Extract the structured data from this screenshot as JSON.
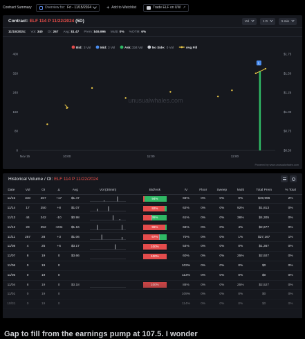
{
  "topbar": {
    "title": "Contract Summary",
    "overview_label": "Overview for:",
    "overview_date": "Fri - 11/15/2024",
    "add_watchlist": "Add to Watchlist",
    "trade": "Trade ELF on UW"
  },
  "contract": {
    "prefix": "Contract:",
    "symbol": "ELF 114 P 11/22/2024",
    "dte": "(5D)",
    "dropdowns": [
      "Vol",
      "1 D",
      "5 min"
    ],
    "stats": {
      "date": "11/15/2024:",
      "vol_label": "Vol:",
      "vol": "340",
      "oi_label": "OI:",
      "oi": "267",
      "avg_label": "Avg:",
      "avg": "$1.47",
      "prem_label": "Prem:",
      "prem": "$49,996",
      "multi_label": "Multi:",
      "multi": "0%",
      "otm_label": "%OTM:",
      "otm": "6%"
    },
    "watermark": "unusualwhales.com",
    "powered": "Powered by www.unusualwhales.com"
  },
  "chart_data": {
    "type": "scatter",
    "x_ticks": [
      "Nov 15",
      "10:00",
      "11:00",
      "12:00"
    ],
    "y_left_ticks": [
      0,
      80,
      160,
      240,
      320,
      400
    ],
    "y_right_ticks": [
      "$0.50",
      "$0.75",
      "$1.00",
      "$1.25",
      "$1.50",
      "$1.75"
    ],
    "ylim_left": [
      0,
      400
    ],
    "ylim_right": [
      0.5,
      1.75
    ],
    "legend": [
      {
        "label": "Bid:",
        "value": "3 Vol",
        "color": "#e44c4c"
      },
      {
        "label": "Mid:",
        "value": "3 Vol",
        "color": "#4a8df0"
      },
      {
        "label": "Ask:",
        "value": "334 Vol",
        "color": "#2fb864"
      },
      {
        "label": "No Side:",
        "value": "0 Vol",
        "color": "#cfd2d8"
      },
      {
        "label": "Avg Fill",
        "value": "",
        "color": "#e8c547"
      }
    ],
    "avg_fill_points": [
      {
        "t": "09:46",
        "price": 0.84
      },
      {
        "t": "10:00",
        "price": 1.05
      },
      {
        "t": "10:18",
        "price": 1.31
      },
      {
        "t": "10:42",
        "price": 1.18
      },
      {
        "t": "11:14",
        "price": 1.26
      },
      {
        "t": "11:48",
        "price": 1.2
      },
      {
        "t": "11:58",
        "price": 1.28
      },
      {
        "t": "12:15",
        "price": 1.5
      },
      {
        "t": "12:22",
        "price": 1.56
      }
    ],
    "volume_spike": {
      "t": "12:18",
      "vol": 330
    },
    "bubble_label": "L"
  },
  "history": {
    "title_prefix": "Historical Volume / OI:",
    "title_symbol": "ELF 114 P 11/22/2024",
    "columns": [
      "Date",
      "Vol",
      "OI",
      "Δ",
      "Avg",
      "Vol (30min)",
      "Bid/Ask",
      "IV",
      "Floor",
      "Sweep",
      "Multi",
      "Total Prem",
      "% Total"
    ],
    "rows": [
      {
        "date": "11/15",
        "vol": "340",
        "oi": "267",
        "delta": "+17",
        "avg": "$1.47",
        "bid": 6,
        "mid": 0,
        "ask": 94,
        "ba": "94%",
        "iv": "66%",
        "floor": "0%",
        "sweep": "0%",
        "multi": "0%",
        "prem": "$49,996",
        "pct": "2%"
      },
      {
        "date": "11/14",
        "vol": "17",
        "oi": "250",
        "delta": "+8",
        "avg": "$1.07",
        "bid": 92,
        "mid": 0,
        "ask": 8,
        "ba": "92%",
        "iv": "62%",
        "floor": "0%",
        "sweep": "0%",
        "multi": "92%",
        "prem": "$1,813",
        "pct": "0%"
      },
      {
        "date": "11/13",
        "vol": "44",
        "oi": "242",
        "delta": "-10",
        "avg": "$0.98",
        "bid": 36,
        "mid": 4,
        "ask": 60,
        "ba": "36%",
        "iv": "61%",
        "floor": "0%",
        "sweep": "0%",
        "multi": "36%",
        "prem": "$4,305",
        "pct": "0%"
      },
      {
        "date": "11/12",
        "vol": "23",
        "oi": "252",
        "delta": "+234",
        "avg": "$1.16",
        "bid": 96,
        "mid": 0,
        "ask": 4,
        "ba": "96%",
        "iv": "66%",
        "floor": "0%",
        "sweep": "0%",
        "multi": "4%",
        "prem": "$2,677",
        "pct": "0%"
      },
      {
        "date": "11/11",
        "vol": "257",
        "oi": "28",
        "delta": "+3",
        "avg": "$1.06",
        "bid": 67,
        "mid": 3,
        "ask": 30,
        "ba": "67%",
        "iv": "70%",
        "floor": "0%",
        "sweep": "0%",
        "multi": "1%",
        "prem": "$27,167",
        "pct": "1%"
      },
      {
        "date": "11/08",
        "vol": "4",
        "oi": "25",
        "delta": "+6",
        "avg": "$3.17",
        "bid": 100,
        "mid": 0,
        "ask": 0,
        "ba": "100%",
        "iv": "54%",
        "floor": "0%",
        "sweep": "0%",
        "multi": "0%",
        "prem": "$1,367",
        "pct": "0%"
      },
      {
        "date": "11/07",
        "vol": "8",
        "oi": "19",
        "delta": "0",
        "avg": "$3.66",
        "bid": 100,
        "mid": 0,
        "ask": 0,
        "ba": "100%",
        "iv": "60%",
        "floor": "0%",
        "sweep": "0%",
        "multi": "25%",
        "prem": "$2,927",
        "pct": "0%"
      },
      {
        "date": "11/06",
        "vol": "0",
        "oi": "19",
        "delta": "0",
        "avg": "",
        "bid": 0,
        "mid": 0,
        "ask": 0,
        "ba": "",
        "iv": "103%",
        "floor": "0%",
        "sweep": "0%",
        "multi": "0%",
        "prem": "$0",
        "pct": "0%"
      },
      {
        "date": "11/05",
        "vol": "0",
        "oi": "19",
        "delta": "0",
        "avg": "",
        "bid": 0,
        "mid": 0,
        "ask": 0,
        "ba": "",
        "iv": "113%",
        "floor": "0%",
        "sweep": "0%",
        "multi": "0%",
        "prem": "$0",
        "pct": "0%"
      },
      {
        "date": "11/04",
        "vol": "8",
        "oi": "19",
        "delta": "0",
        "avg": "$3.18",
        "bid": 100,
        "mid": 0,
        "ask": 0,
        "ba": "100%",
        "iv": "88%",
        "floor": "0%",
        "sweep": "0%",
        "multi": "25%",
        "prem": "$2,527",
        "pct": "0%"
      },
      {
        "date": "11/01",
        "vol": "0",
        "oi": "19",
        "delta": "0",
        "avg": "",
        "bid": 0,
        "mid": 0,
        "ask": 0,
        "ba": "",
        "iv": "109%",
        "floor": "0%",
        "sweep": "0%",
        "multi": "0%",
        "prem": "$0",
        "pct": "0%"
      },
      {
        "date": "10/31",
        "vol": "0",
        "oi": "19",
        "delta": "0",
        "avg": "",
        "bid": 0,
        "mid": 0,
        "ask": 0,
        "ba": "",
        "iv": "114%",
        "floor": "0%",
        "sweep": "0%",
        "multi": "0%",
        "prem": "$0",
        "pct": "0%"
      }
    ],
    "spark_sets": [
      [
        0,
        0,
        0,
        0,
        0,
        0,
        1,
        0,
        0,
        0,
        0,
        0,
        8,
        0,
        0,
        0
      ],
      [
        0,
        0,
        0,
        1,
        0,
        0,
        0,
        0,
        2,
        0,
        0,
        0,
        0,
        0,
        0,
        0
      ],
      [
        0,
        0,
        0,
        0,
        0,
        0,
        0,
        0,
        0,
        0,
        5,
        0,
        0,
        1,
        0,
        0
      ],
      [
        0,
        0,
        0,
        1,
        0,
        0,
        0,
        0,
        0,
        0,
        0,
        0,
        0,
        0,
        1,
        0
      ],
      [
        0,
        0,
        0,
        0,
        0,
        2,
        0,
        0,
        0,
        0,
        0,
        0,
        0,
        0,
        1,
        0
      ],
      [
        0,
        0,
        0,
        0,
        0,
        0,
        0,
        0,
        0,
        0,
        0,
        1,
        0,
        0,
        0,
        0
      ],
      [
        0,
        0,
        0,
        0,
        0,
        0,
        0,
        0,
        0,
        0,
        0,
        0,
        0,
        0,
        0,
        0
      ],
      [],
      [],
      [
        0,
        0,
        0,
        0,
        0,
        0,
        0,
        0,
        0,
        0,
        0,
        0,
        0,
        0,
        0,
        0
      ],
      [],
      []
    ]
  },
  "bottom_text": "Gap to fill from the earnings pump at 107.5. I wonder"
}
